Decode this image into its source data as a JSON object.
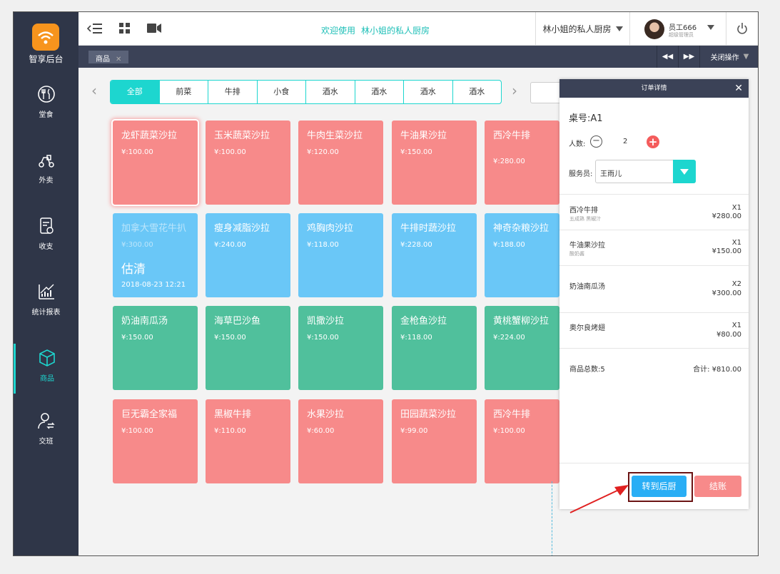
{
  "app": {
    "logo_text": "智享后台"
  },
  "sidebar": {
    "items": [
      {
        "label": "堂食",
        "icon": "dining-icon"
      },
      {
        "label": "外卖",
        "icon": "scooter-icon"
      },
      {
        "label": "收支",
        "icon": "ledger-icon"
      },
      {
        "label": "统计报表",
        "icon": "chart-icon"
      },
      {
        "label": "商品",
        "icon": "cube-icon",
        "active": true
      },
      {
        "label": "交班",
        "icon": "user-handover-icon"
      }
    ]
  },
  "header": {
    "welcome": "欢迎使用",
    "shop_name": "林小姐的私人厨房",
    "shop_select": "林小姐的私人厨房",
    "user_name": "员工666",
    "user_role": "超级管理员"
  },
  "tabbar": {
    "tab": "商品",
    "close_ops": "关闭操作"
  },
  "categories": [
    "全部",
    "前菜",
    "牛排",
    "小食",
    "酒水",
    "酒水",
    "酒水",
    "酒水"
  ],
  "dishes": [
    {
      "name": "龙虾蔬菜沙拉",
      "price": "¥:100.00",
      "color": "red",
      "selected": true
    },
    {
      "name": "玉米蔬菜沙拉",
      "price": "¥:100.00",
      "color": "red"
    },
    {
      "name": "牛肉生菜沙拉",
      "price": "¥:120.00",
      "color": "red"
    },
    {
      "name": "牛油果沙拉",
      "price": "¥:150.00",
      "color": "red"
    },
    {
      "name": "西冷牛排",
      "price": "¥:280.00",
      "color": "red"
    },
    {
      "name": "加拿大雪花牛扒",
      "price": "¥:300.00",
      "color": "blue",
      "sold_out": "估清",
      "date": "2018-08-23 12:21"
    },
    {
      "name": "瘦身减脂沙拉",
      "price": "¥:240.00",
      "color": "blue"
    },
    {
      "name": "鸡胸肉沙拉",
      "price": "¥:118.00",
      "color": "blue"
    },
    {
      "name": "牛排时蔬沙拉",
      "price": "¥:228.00",
      "color": "blue"
    },
    {
      "name": "神奇杂粮沙拉",
      "price": "¥:188.00",
      "color": "blue"
    },
    {
      "name": "奶油南瓜汤",
      "price": "¥:150.00",
      "color": "green"
    },
    {
      "name": "海草巴沙鱼",
      "price": "¥:150.00",
      "color": "green"
    },
    {
      "name": "凯撒沙拉",
      "price": "¥:150.00",
      "color": "green"
    },
    {
      "name": "金枪鱼沙拉",
      "price": "¥:118.00",
      "color": "green"
    },
    {
      "name": "黄桃蟹柳沙拉",
      "price": "¥:224.00",
      "color": "green"
    },
    {
      "name": "巨无霸全家福",
      "price": "¥:100.00",
      "color": "red"
    },
    {
      "name": "黑椒牛排",
      "price": "¥:110.00",
      "color": "red"
    },
    {
      "name": "水果沙拉",
      "price": "¥:60.00",
      "color": "red"
    },
    {
      "name": "田园蔬菜沙拉",
      "price": "¥:99.00",
      "color": "red"
    },
    {
      "name": "西冷牛排",
      "price": "¥:100.00",
      "color": "red"
    }
  ],
  "order": {
    "title": "订单详情",
    "table_no": "桌号:A1",
    "people_label": "人数:",
    "people_count": "2",
    "waiter_label": "服务员:",
    "waiter": "王雨儿",
    "items": [
      {
        "name": "西冷牛排",
        "note": "五成熟 黑椒汁",
        "qty": "X1",
        "price": "¥280.00"
      },
      {
        "name": "牛油果沙拉",
        "note": "酸奶酱",
        "qty": "X1",
        "price": "¥150.00"
      },
      {
        "name": "奶油南瓜汤",
        "note": "",
        "qty": "X2",
        "price": "¥300.00"
      },
      {
        "name": "奥尔良烤翅",
        "note": "",
        "qty": "X1",
        "price": "¥80.00"
      }
    ],
    "total_count": "商品总数:5",
    "total_sum": "合计: ¥810.00",
    "to_kitchen": "转到后厨",
    "checkout": "结账"
  },
  "colors": {
    "accent": "#1dd6cf",
    "red": "#f78a8a",
    "blue": "#6ac7f7",
    "green": "#50c09c",
    "sidebar": "#2f3648"
  }
}
